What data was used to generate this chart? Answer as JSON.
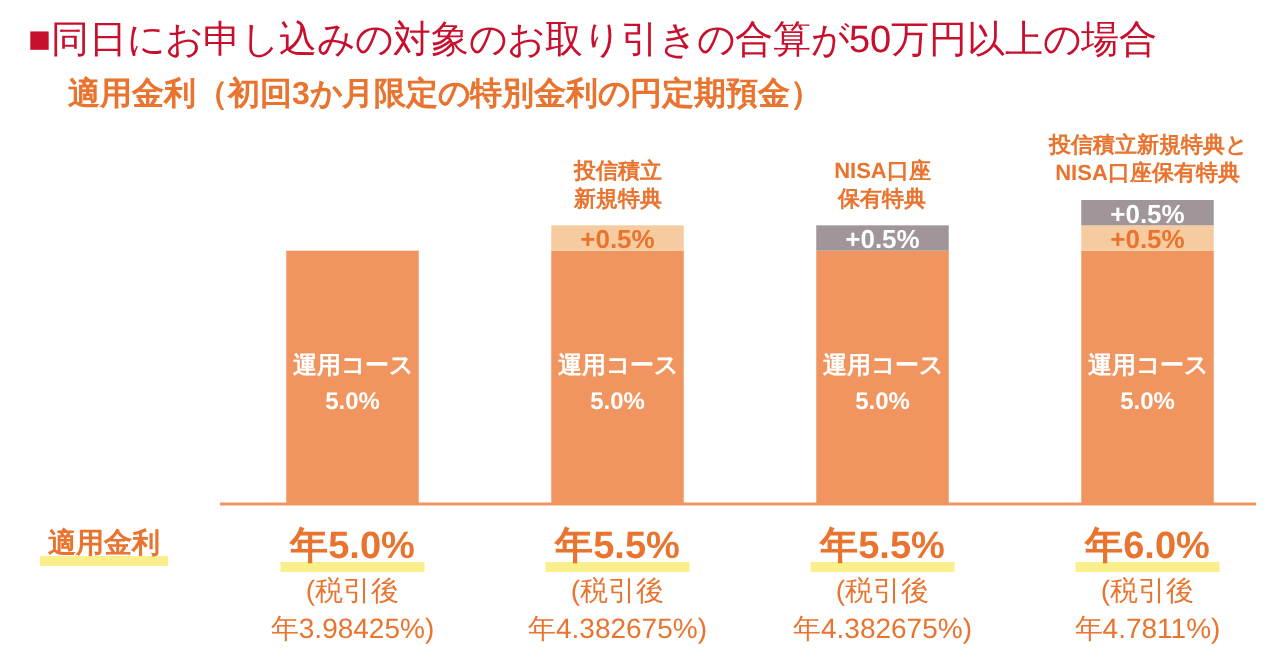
{
  "chart_data": {
    "type": "bar",
    "stacked": true,
    "title": "■同日にお申し込みの対象のお取り引きの合算が50万円以上の場合",
    "subtitle": "適用金利（初回3か月限定の特別金利の円定期預金）",
    "categories": [
      null,
      "投信積立新規特典",
      "NISA口座保有特典",
      "投信積立新規特典とNISA口座保有特典"
    ],
    "series": [
      {
        "name": "運用コース",
        "color": "#f0955f",
        "values": [
          5.0,
          5.0,
          5.0,
          5.0
        ],
        "value_labels": [
          "5.0%",
          "5.0%",
          "5.0%",
          "5.0%"
        ]
      },
      {
        "color": "#f7cba0",
        "values": [
          null,
          0.5,
          null,
          0.5
        ],
        "value_labels": [
          null,
          "+0.5%",
          null,
          "+0.5%"
        ]
      },
      {
        "color": "#a09598",
        "values": [
          null,
          null,
          0.5,
          0.5
        ],
        "value_labels": [
          null,
          null,
          "+0.5%",
          "+0.5%"
        ]
      }
    ],
    "totals": [
      "年5.0%",
      "年5.5%",
      "年5.5%",
      "年6.0%"
    ],
    "annotations": [
      "適用金利",
      "(税引後年3.98425%)",
      "(税引後年4.382675%)",
      "(税引後年4.382675%)",
      "(税引後年4.7811%)"
    ]
  }
}
